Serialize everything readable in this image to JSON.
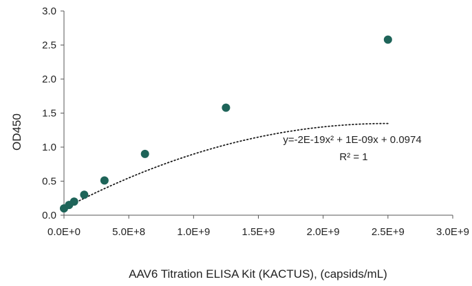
{
  "chart_data": {
    "type": "scatter",
    "title": "",
    "xlabel": "AAV6 Titration ELISA Kit (KACTUS), (capsids/mL)",
    "ylabel": "OD450",
    "xlim": [
      0,
      3000000000
    ],
    "ylim": [
      0,
      3.0
    ],
    "x_ticks": [
      0,
      500000000,
      1000000000,
      1500000000,
      2000000000,
      2500000000,
      3000000000
    ],
    "x_tick_labels": [
      "0.0E+0",
      "5.0E+8",
      "1.0E+9",
      "1.5E+9",
      "2.0E+9",
      "2.5E+9",
      "3.0E+9"
    ],
    "y_ticks": [
      0,
      0.5,
      1.0,
      1.5,
      2.0,
      2.5,
      3.0
    ],
    "y_tick_labels": [
      "0.0",
      "0.5",
      "1.0",
      "1.5",
      "2.0",
      "2.5",
      "3.0"
    ],
    "grid": false,
    "points": [
      {
        "x": 0,
        "y": 0.1
      },
      {
        "x": 39062500,
        "y": 0.15
      },
      {
        "x": 78125000,
        "y": 0.2
      },
      {
        "x": 156250000,
        "y": 0.3
      },
      {
        "x": 312500000,
        "y": 0.51
      },
      {
        "x": 625000000,
        "y": 0.9
      },
      {
        "x": 1250000000,
        "y": 1.58
      },
      {
        "x": 2500000000,
        "y": 2.58
      }
    ],
    "trendline": {
      "type": "polynomial",
      "style": "dotted",
      "equation": "y=-2E-19x² + 1E-09x + 0.0974",
      "r_squared": "R² = 1",
      "coefficients": {
        "a": -2e-19,
        "b": 1e-09,
        "c": 0.0974
      }
    },
    "colors": {
      "marker": "#1e6459",
      "trendline": "#1a1a1a",
      "axis": "#555555"
    }
  }
}
